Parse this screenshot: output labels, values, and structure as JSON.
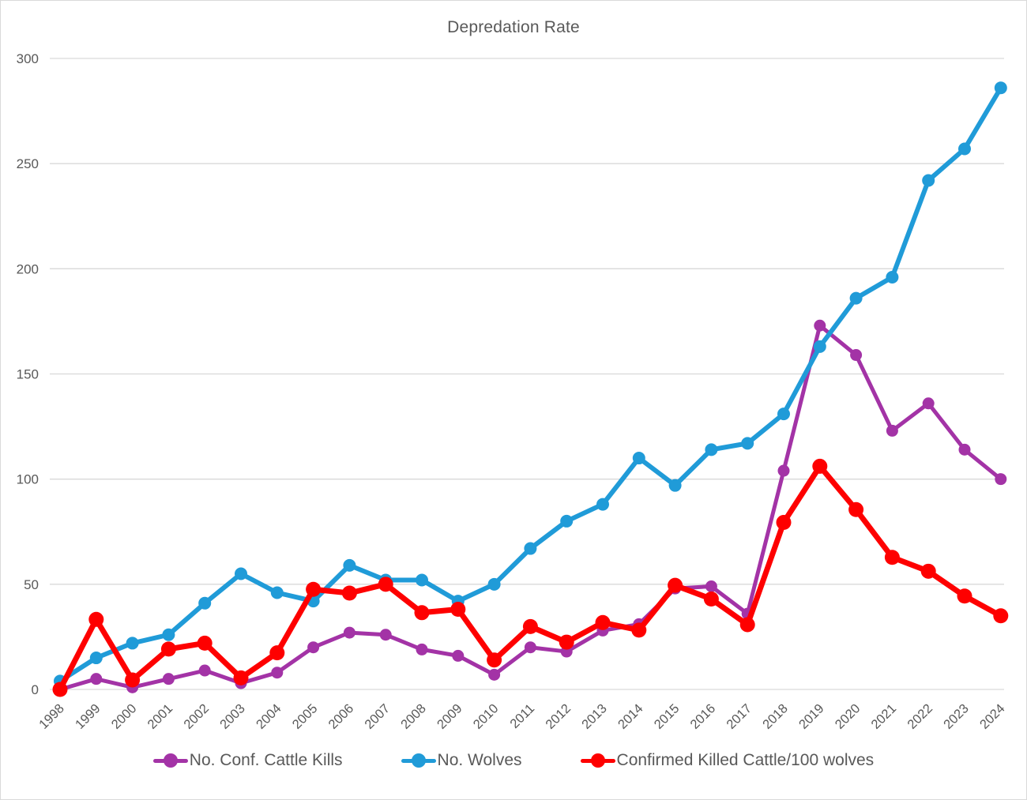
{
  "chart_data": {
    "type": "line",
    "title": "Depredation Rate",
    "xlabel": "",
    "ylabel": "",
    "categories": [
      "1998",
      "1999",
      "2000",
      "2001",
      "2002",
      "2003",
      "2004",
      "2005",
      "2006",
      "2007",
      "2008",
      "2009",
      "2010",
      "2011",
      "2012",
      "2013",
      "2014",
      "2015",
      "2016",
      "2017",
      "2018",
      "2019",
      "2020",
      "2021",
      "2022",
      "2023",
      "2024"
    ],
    "series": [
      {
        "id": "conf-cattle-kills",
        "name": "No. Conf. Cattle Kills",
        "color": "#A333A6",
        "z": 1,
        "line_width": 5,
        "dot_radius": 7.5,
        "values": [
          0,
          5,
          1,
          5,
          9,
          3,
          8,
          20,
          27,
          26,
          19,
          16,
          7,
          20,
          18,
          28,
          31,
          48,
          49,
          36,
          104,
          173,
          159,
          123,
          136,
          114,
          100
        ]
      },
      {
        "id": "no-wolves",
        "name": "No. Wolves",
        "color": "#209BD8",
        "z": 2,
        "line_width": 6,
        "dot_radius": 8,
        "values": [
          4,
          15,
          22,
          26,
          41,
          55,
          46,
          42,
          59,
          52,
          52,
          42,
          50,
          67,
          80,
          88,
          110,
          97,
          114,
          117,
          131,
          163,
          186,
          196,
          242,
          257,
          286
        ]
      },
      {
        "id": "killed-cattle-per-100-wolves",
        "name": "Confirmed Killed Cattle/100 wolves",
        "color": "#FE0000",
        "z": 3,
        "line_width": 7,
        "dot_radius": 9.5,
        "values": [
          0,
          33.3,
          4.5,
          19.2,
          22.0,
          5.5,
          17.4,
          47.6,
          45.8,
          50.0,
          36.5,
          38.1,
          14.0,
          29.9,
          22.5,
          31.8,
          28.2,
          49.5,
          43.0,
          30.8,
          79.4,
          106.1,
          85.5,
          62.8,
          56.2,
          44.4,
          35.0
        ]
      }
    ],
    "ylim": [
      0,
      300
    ],
    "yticks": [
      0,
      50,
      100,
      150,
      200,
      250,
      300
    ],
    "grid": true,
    "legend_position": "bottom",
    "colors": {
      "axis_text": "#595959",
      "gridline": "#D9D9D9",
      "background": "#FFFFFF"
    }
  }
}
